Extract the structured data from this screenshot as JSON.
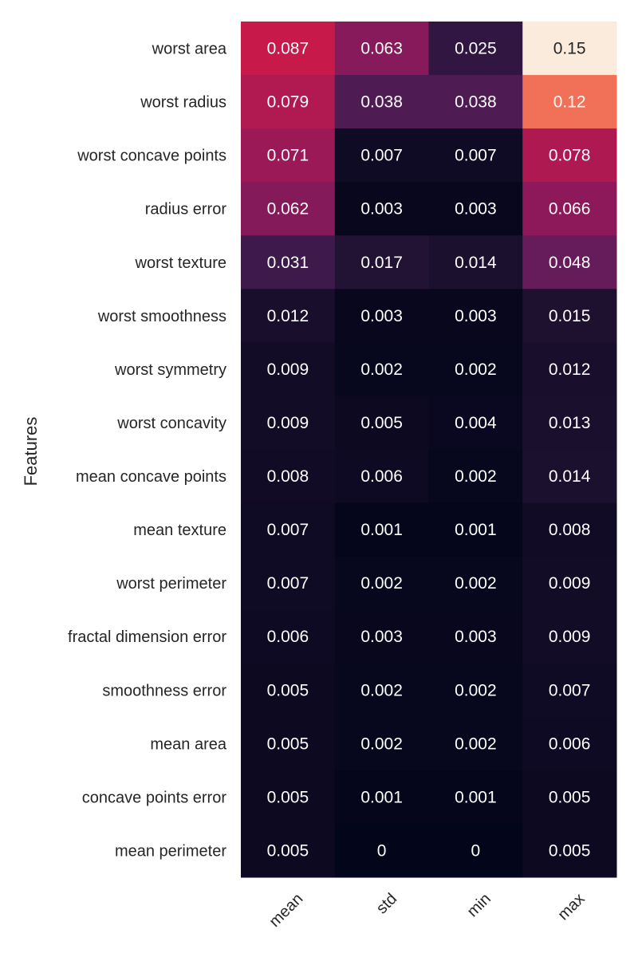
{
  "chart_data": {
    "type": "heatmap",
    "ylabel": "Features",
    "xlabel": "",
    "colormap": "rocket",
    "value_range": [
      0,
      0.15
    ],
    "columns": [
      "mean",
      "std",
      "min",
      "max"
    ],
    "rows": [
      "worst area",
      "worst radius",
      "worst concave points",
      "radius error",
      "worst texture",
      "worst smoothness",
      "worst symmetry",
      "worst concavity",
      "mean concave points",
      "mean texture",
      "worst perimeter",
      "fractal dimension error",
      "smoothness error",
      "mean area",
      "concave points error",
      "mean perimeter"
    ],
    "values": [
      [
        0.087,
        0.063,
        0.025,
        0.15
      ],
      [
        0.079,
        0.038,
        0.038,
        0.12
      ],
      [
        0.071,
        0.007,
        0.007,
        0.078
      ],
      [
        0.062,
        0.003,
        0.003,
        0.066
      ],
      [
        0.031,
        0.017,
        0.014,
        0.048
      ],
      [
        0.012,
        0.003,
        0.003,
        0.015
      ],
      [
        0.009,
        0.002,
        0.002,
        0.012
      ],
      [
        0.009,
        0.005,
        0.004,
        0.013
      ],
      [
        0.008,
        0.006,
        0.002,
        0.014
      ],
      [
        0.007,
        0.001,
        0.001,
        0.008
      ],
      [
        0.007,
        0.002,
        0.002,
        0.009
      ],
      [
        0.006,
        0.003,
        0.003,
        0.009
      ],
      [
        0.005,
        0.002,
        0.002,
        0.007
      ],
      [
        0.005,
        0.002,
        0.002,
        0.006
      ],
      [
        0.005,
        0.001,
        0.001,
        0.005
      ],
      [
        0.005,
        0,
        0,
        0.005
      ]
    ],
    "labels": [
      [
        "0.087",
        "0.063",
        "0.025",
        "0.15"
      ],
      [
        "0.079",
        "0.038",
        "0.038",
        "0.12"
      ],
      [
        "0.071",
        "0.007",
        "0.007",
        "0.078"
      ],
      [
        "0.062",
        "0.003",
        "0.003",
        "0.066"
      ],
      [
        "0.031",
        "0.017",
        "0.014",
        "0.048"
      ],
      [
        "0.012",
        "0.003",
        "0.003",
        "0.015"
      ],
      [
        "0.009",
        "0.002",
        "0.002",
        "0.012"
      ],
      [
        "0.009",
        "0.005",
        "0.004",
        "0.013"
      ],
      [
        "0.008",
        "0.006",
        "0.002",
        "0.014"
      ],
      [
        "0.007",
        "0.001",
        "0.001",
        "0.008"
      ],
      [
        "0.007",
        "0.002",
        "0.002",
        "0.009"
      ],
      [
        "0.006",
        "0.003",
        "0.003",
        "0.009"
      ],
      [
        "0.005",
        "0.002",
        "0.002",
        "0.007"
      ],
      [
        "0.005",
        "0.002",
        "0.002",
        "0.006"
      ],
      [
        "0.005",
        "0.001",
        "0.001",
        "0.005"
      ],
      [
        "0.005",
        "0",
        "0",
        "0.005"
      ]
    ],
    "legend": "none",
    "grid": false
  }
}
